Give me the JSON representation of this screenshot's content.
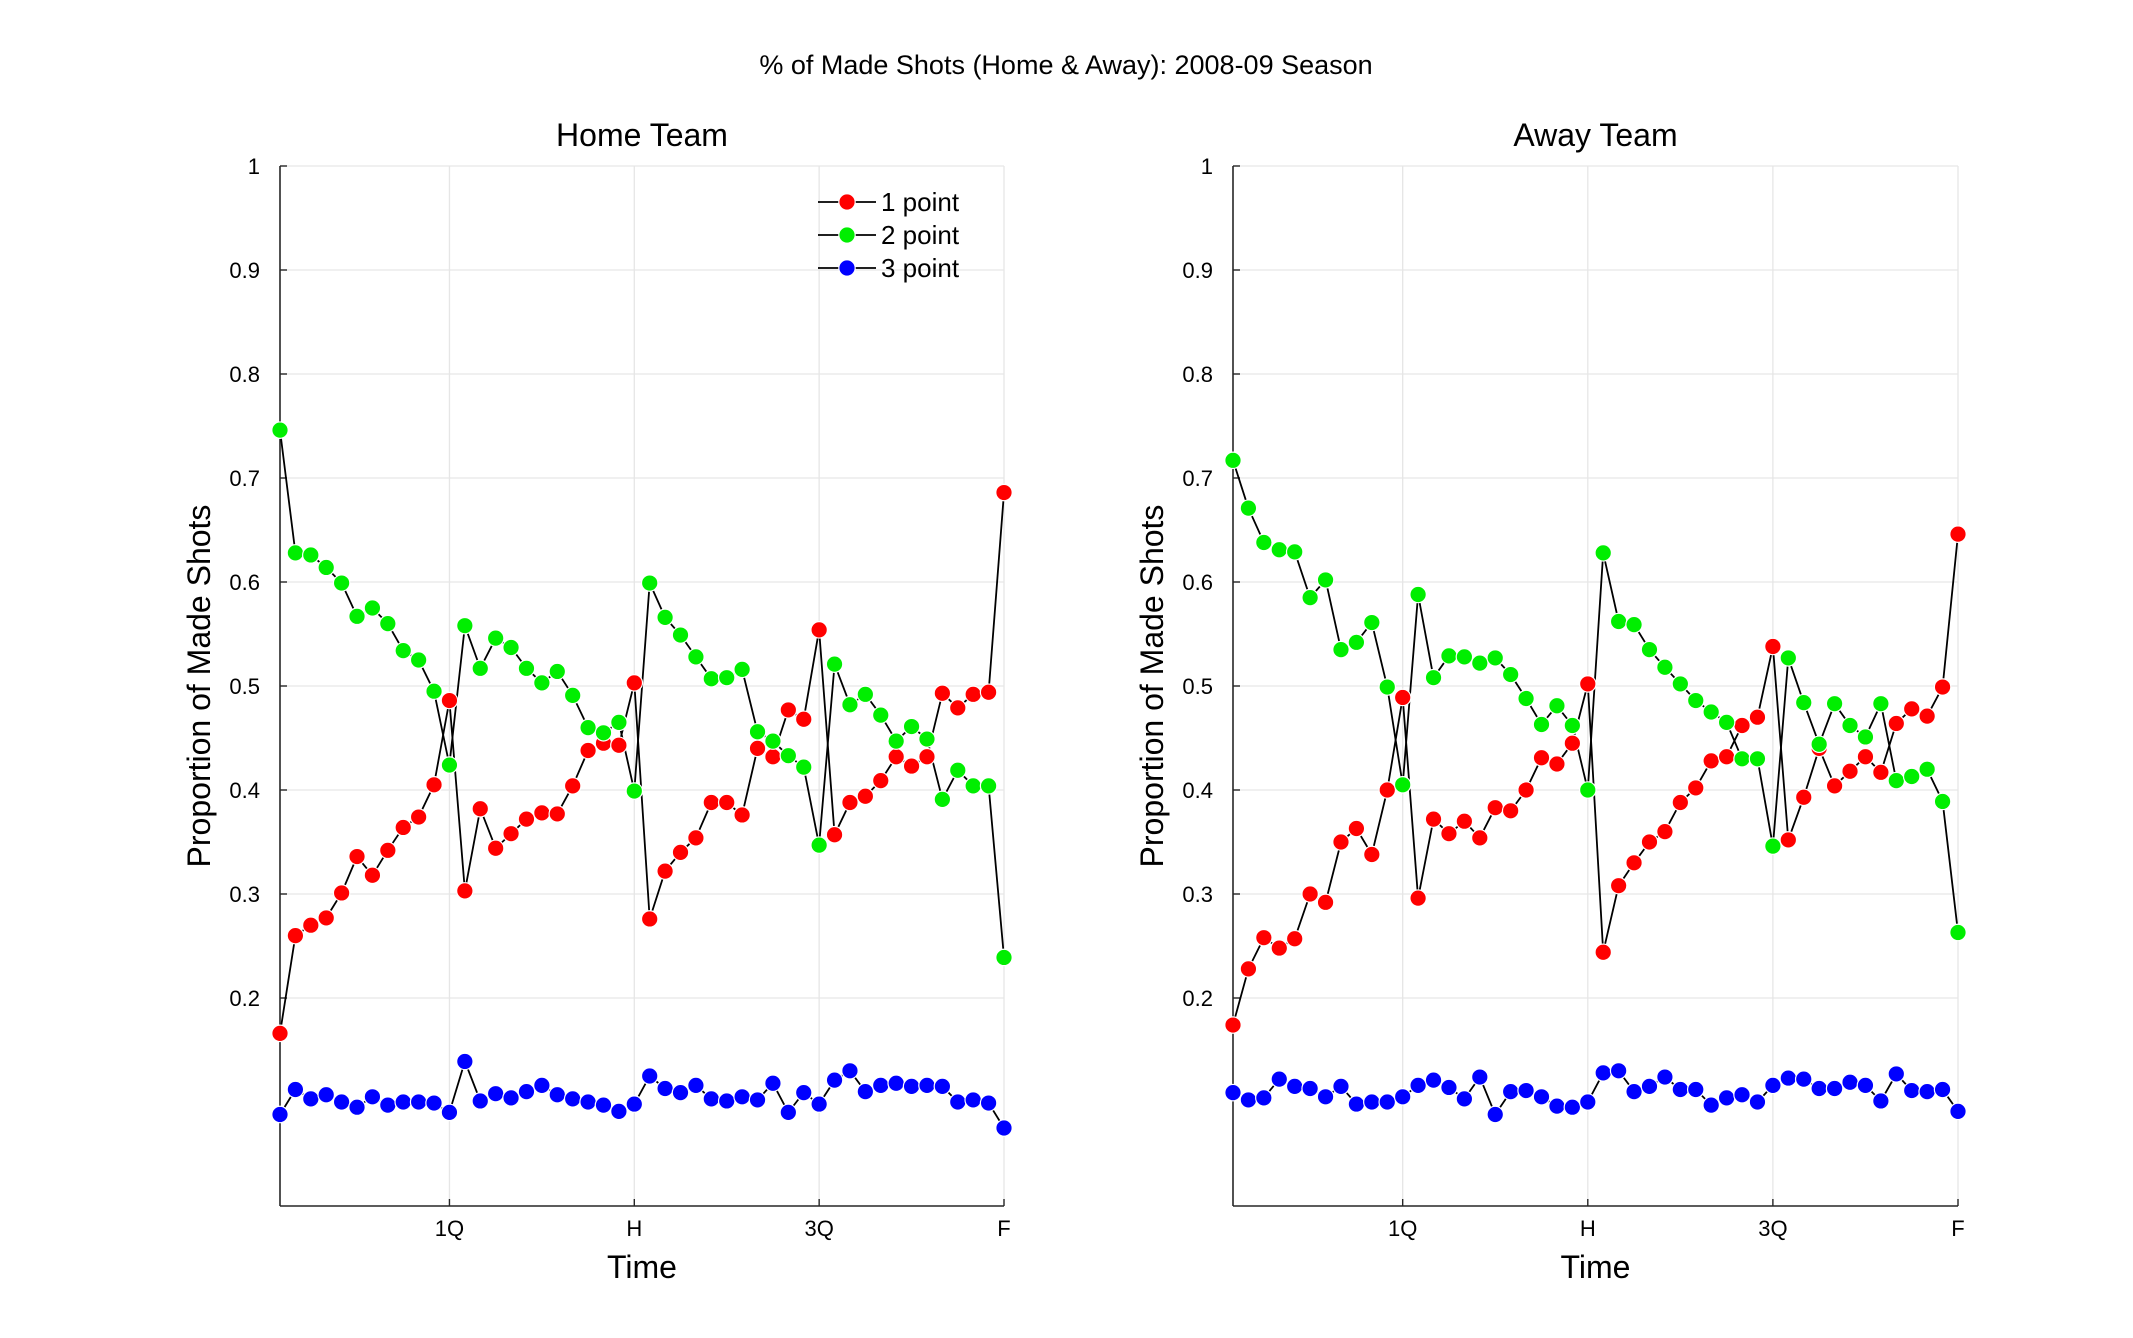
{
  "figure": {
    "title": "% of Made Shots (Home & Away): 2008-09 Season"
  },
  "chart_data": [
    {
      "type": "line",
      "title": "Home Team",
      "xlabel": "Time",
      "ylabel": "Proportion of Made Shots",
      "ylim": [
        0,
        1
      ],
      "xlim": [
        1,
        48
      ],
      "x": [
        1,
        2,
        3,
        4,
        5,
        6,
        7,
        8,
        9,
        10,
        11,
        12,
        13,
        14,
        15,
        16,
        17,
        18,
        19,
        20,
        21,
        22,
        23,
        24,
        25,
        26,
        27,
        28,
        29,
        30,
        31,
        32,
        33,
        34,
        35,
        36,
        37,
        38,
        39,
        40,
        41,
        42,
        43,
        44,
        45,
        46,
        47,
        48
      ],
      "x_ticks": [
        {
          "value": 12,
          "label": "1Q"
        },
        {
          "value": 24,
          "label": "H"
        },
        {
          "value": 36,
          "label": "3Q"
        },
        {
          "value": 48,
          "label": "F"
        }
      ],
      "y_ticks": [
        {
          "value": 0.2,
          "label": "0.2"
        },
        {
          "value": 0.3,
          "label": "0.3"
        },
        {
          "value": 0.4,
          "label": "0.4"
        },
        {
          "value": 0.5,
          "label": "0.5"
        },
        {
          "value": 0.6,
          "label": "0.6"
        },
        {
          "value": 0.7,
          "label": "0.7"
        },
        {
          "value": 0.8,
          "label": "0.8"
        },
        {
          "value": 0.9,
          "label": "0.9"
        },
        {
          "value": 1,
          "label": "1"
        }
      ],
      "grid": true,
      "legend": {
        "show": true,
        "placement": "top-right"
      },
      "series": [
        {
          "name": "1 point",
          "color": "#ff0000",
          "values": [
            0.166,
            0.26,
            0.27,
            0.277,
            0.301,
            0.336,
            0.318,
            0.342,
            0.364,
            0.374,
            0.405,
            0.486,
            0.303,
            0.382,
            0.344,
            0.358,
            0.372,
            0.378,
            0.377,
            0.404,
            0.438,
            0.445,
            0.443,
            0.503,
            0.276,
            0.322,
            0.34,
            0.354,
            0.388,
            0.388,
            0.376,
            0.44,
            0.432,
            0.477,
            0.468,
            0.554,
            0.357,
            0.388,
            0.394,
            0.409,
            0.432,
            0.423,
            0.432,
            0.493,
            0.479,
            0.492,
            0.494,
            0.686
          ]
        },
        {
          "name": "2 point",
          "color": "#00ee00",
          "values": [
            0.746,
            0.628,
            0.626,
            0.614,
            0.599,
            0.567,
            0.575,
            0.56,
            0.534,
            0.525,
            0.495,
            0.424,
            0.558,
            0.517,
            0.546,
            0.537,
            0.517,
            0.503,
            0.514,
            0.491,
            0.46,
            0.455,
            0.465,
            0.399,
            0.599,
            0.566,
            0.549,
            0.528,
            0.507,
            0.508,
            0.516,
            0.456,
            0.447,
            0.433,
            0.422,
            0.347,
            0.521,
            0.482,
            0.492,
            0.472,
            0.447,
            0.461,
            0.449,
            0.391,
            0.419,
            0.404,
            0.404,
            0.239
          ]
        },
        {
          "name": "3 point",
          "color": "#0000ff",
          "values": [
            0.088,
            0.112,
            0.103,
            0.107,
            0.1,
            0.095,
            0.105,
            0.097,
            0.1,
            0.1,
            0.099,
            0.09,
            0.139,
            0.101,
            0.108,
            0.104,
            0.11,
            0.116,
            0.107,
            0.103,
            0.1,
            0.097,
            0.091,
            0.098,
            0.125,
            0.113,
            0.109,
            0.116,
            0.103,
            0.101,
            0.105,
            0.102,
            0.118,
            0.09,
            0.109,
            0.098,
            0.121,
            0.13,
            0.11,
            0.116,
            0.118,
            0.115,
            0.116,
            0.115,
            0.1,
            0.102,
            0.099,
            0.075
          ]
        }
      ]
    },
    {
      "type": "line",
      "title": "Away Team",
      "xlabel": "Time",
      "ylabel": "Proportion of Made Shots",
      "ylim": [
        0,
        1
      ],
      "xlim": [
        1,
        48
      ],
      "x": [
        1,
        2,
        3,
        4,
        5,
        6,
        7,
        8,
        9,
        10,
        11,
        12,
        13,
        14,
        15,
        16,
        17,
        18,
        19,
        20,
        21,
        22,
        23,
        24,
        25,
        26,
        27,
        28,
        29,
        30,
        31,
        32,
        33,
        34,
        35,
        36,
        37,
        38,
        39,
        40,
        41,
        42,
        43,
        44,
        45,
        46,
        47,
        48
      ],
      "x_ticks": [
        {
          "value": 12,
          "label": "1Q"
        },
        {
          "value": 24,
          "label": "H"
        },
        {
          "value": 36,
          "label": "3Q"
        },
        {
          "value": 48,
          "label": "F"
        }
      ],
      "y_ticks": [
        {
          "value": 0.2,
          "label": "0.2"
        },
        {
          "value": 0.3,
          "label": "0.3"
        },
        {
          "value": 0.4,
          "label": "0.4"
        },
        {
          "value": 0.5,
          "label": "0.5"
        },
        {
          "value": 0.6,
          "label": "0.6"
        },
        {
          "value": 0.7,
          "label": "0.7"
        },
        {
          "value": 0.8,
          "label": "0.8"
        },
        {
          "value": 0.9,
          "label": "0.9"
        },
        {
          "value": 1,
          "label": "1"
        }
      ],
      "grid": true,
      "legend": {
        "show": false
      },
      "series": [
        {
          "name": "1 point",
          "color": "#ff0000",
          "values": [
            0.174,
            0.228,
            0.258,
            0.248,
            0.257,
            0.3,
            0.292,
            0.35,
            0.363,
            0.338,
            0.4,
            0.489,
            0.296,
            0.372,
            0.358,
            0.37,
            0.354,
            0.383,
            0.38,
            0.4,
            0.431,
            0.425,
            0.445,
            0.502,
            0.244,
            0.308,
            0.33,
            0.35,
            0.36,
            0.388,
            0.402,
            0.428,
            0.432,
            0.462,
            0.47,
            0.538,
            0.352,
            0.393,
            0.44,
            0.404,
            0.418,
            0.432,
            0.417,
            0.464,
            0.478,
            0.471,
            0.499,
            0.646
          ]
        },
        {
          "name": "2 point",
          "color": "#00ee00",
          "values": [
            0.717,
            0.671,
            0.638,
            0.631,
            0.629,
            0.585,
            0.602,
            0.535,
            0.542,
            0.561,
            0.499,
            0.405,
            0.588,
            0.508,
            0.529,
            0.528,
            0.522,
            0.527,
            0.511,
            0.488,
            0.463,
            0.481,
            0.462,
            0.4,
            0.628,
            0.562,
            0.559,
            0.535,
            0.518,
            0.502,
            0.486,
            0.475,
            0.465,
            0.43,
            0.43,
            0.346,
            0.527,
            0.484,
            0.444,
            0.483,
            0.462,
            0.451,
            0.483,
            0.409,
            0.413,
            0.42,
            0.389,
            0.263
          ]
        },
        {
          "name": "3 point",
          "color": "#0000ff",
          "values": [
            0.109,
            0.102,
            0.104,
            0.122,
            0.115,
            0.113,
            0.105,
            0.115,
            0.098,
            0.1,
            0.1,
            0.105,
            0.116,
            0.121,
            0.114,
            0.103,
            0.124,
            0.088,
            0.11,
            0.111,
            0.105,
            0.096,
            0.095,
            0.1,
            0.128,
            0.13,
            0.11,
            0.115,
            0.124,
            0.112,
            0.112,
            0.097,
            0.104,
            0.107,
            0.1,
            0.116,
            0.123,
            0.122,
            0.113,
            0.113,
            0.119,
            0.116,
            0.101,
            0.127,
            0.111,
            0.11,
            0.112,
            0.091
          ]
        }
      ]
    }
  ]
}
